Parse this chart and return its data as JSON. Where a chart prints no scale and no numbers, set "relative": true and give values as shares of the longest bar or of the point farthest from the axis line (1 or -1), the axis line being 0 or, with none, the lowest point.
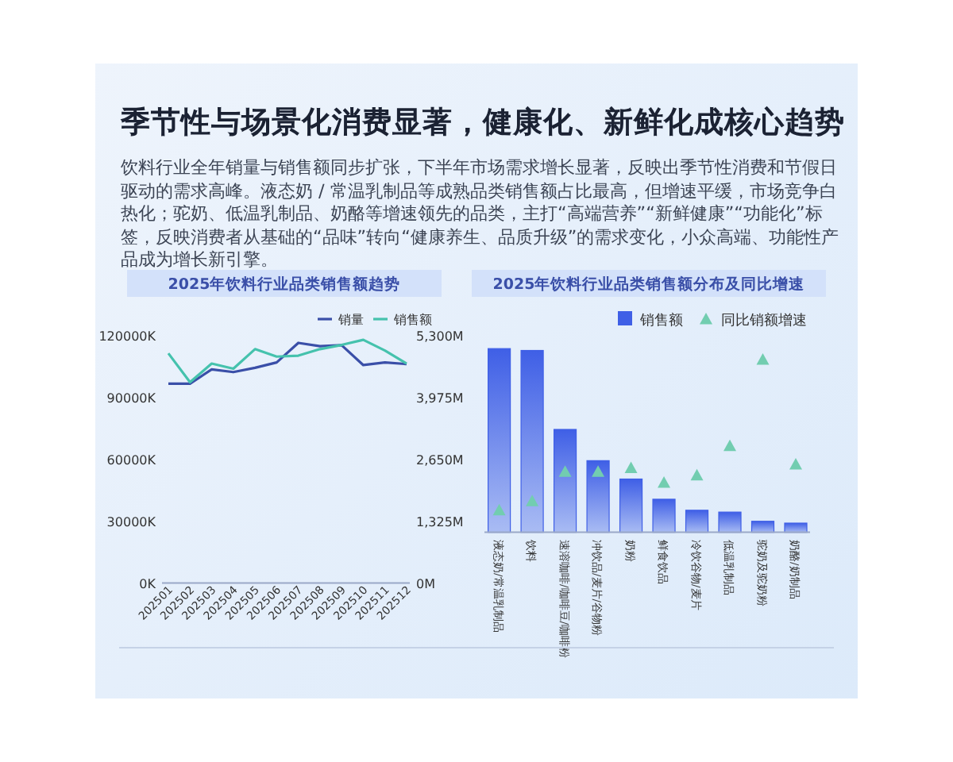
{
  "chart_data": [
    {
      "type": "other",
      "title": "季节性与场景化消费显著，健康化、新鲜化成核心趋势",
      "subtitle": "饮料行业全年销量与销售额同步扩张，下半年市场需求增长显著，反映出季节性消费和节假日驱动的需求高峰。液态奶 / 常温乳制品等成熟品类销售额占比最高，但增速平缓，市场竞争白热化；驼奶、低温乳制品、奶酪等增速领先的品类，主打“高端营养”“新鲜健康”“功能化”标签，反映消费者从基础的“品味”转向“健康养生、品质升级”的需求变化，小众高端、功能性产品成为增长新引擎。"
    },
    {
      "type": "line",
      "title": "2025年饮料行业品类销售额趋势",
      "categories": [
        "202501",
        "202502",
        "202503",
        "202504",
        "202505",
        "202506",
        "202507",
        "202508",
        "202509",
        "202510",
        "202511",
        "202512"
      ],
      "series": [
        {
          "name": "销量",
          "color": "#3a4fa8",
          "values": [
            96900,
            96900,
            103800,
            102500,
            104600,
            107200,
            116700,
            115100,
            115600,
            105900,
            107200,
            106400
          ]
        },
        {
          "name": "销售额",
          "color": "#45c2ad",
          "axis": "y2",
          "values": [
            4930,
            4310,
            4710,
            4600,
            5020,
            4860,
            4880,
            5020,
            5110,
            5220,
            4990,
            4710
          ]
        }
      ],
      "ylim": [
        0,
        120000
      ],
      "yticks": [
        {
          "value": 0,
          "label": "0K"
        },
        {
          "value": 30000,
          "label": "30000K"
        },
        {
          "value": 60000,
          "label": "60000K"
        },
        {
          "value": 90000,
          "label": "90000K"
        },
        {
          "value": 120000,
          "label": "120000K"
        }
      ],
      "y2lim": [
        0,
        5300
      ],
      "y2ticks": [
        {
          "value": 0,
          "label": "0M"
        },
        {
          "value": 1325,
          "label": "1,325M"
        },
        {
          "value": 2650,
          "label": "2,650M"
        },
        {
          "value": 3975,
          "label": "3,975M"
        },
        {
          "value": 5300,
          "label": "5,300M"
        }
      ],
      "legend": "top right",
      "marker": "none"
    },
    {
      "type": "bar",
      "title": "2025年饮料行业品类销售额分布及同比增速",
      "relative": true,
      "categories": [
        "液态奶/常温乳制品",
        "饮料",
        "速溶咖啡/咖啡豆/咖啡粉",
        "冲饮品/麦片/谷物粉",
        "奶粉",
        "鲜食饮品",
        "冷饮谷物/麦片",
        "低温乳制品",
        "驼奶及驼奶粉",
        "奶酪/奶制品"
      ],
      "series": [
        {
          "name": "销售额",
          "color": "#3f5fe6",
          "values": [
            1,
            0.99,
            0.56,
            0.39,
            0.29,
            0.18,
            0.12,
            0.11,
            0.06,
            0.05
          ]
        },
        {
          "name": "同比销额增速",
          "type": "scatter",
          "marker": "triangle",
          "color": "#72cdb0",
          "values": [
            0.12,
            0.17,
            0.33,
            0.33,
            0.35,
            0.27,
            0.31,
            0.47,
            0.94,
            0.37
          ]
        }
      ],
      "legend": "top right"
    }
  ]
}
